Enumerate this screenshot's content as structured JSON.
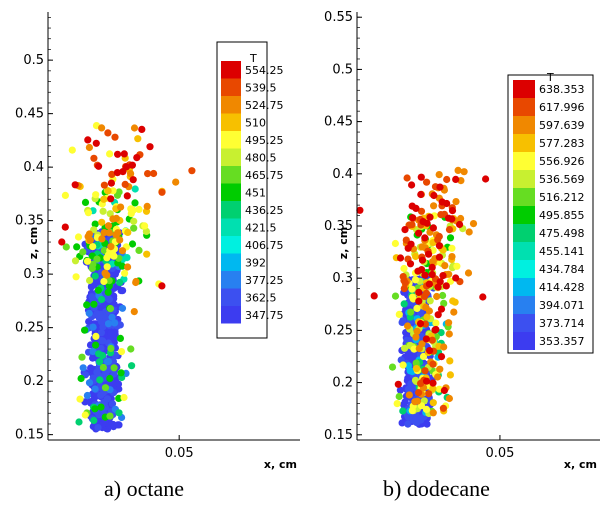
{
  "chart_data": [
    {
      "type": "scatter",
      "caption": "a) octane",
      "xlabel": "x, cm",
      "ylabel": "z, cm",
      "xlim": [
        0.012,
        0.085
      ],
      "ylim": [
        0.145,
        0.545
      ],
      "x_ticks": [
        {
          "value": 0.05,
          "label": "0.05"
        }
      ],
      "y_ticks": [
        {
          "value": 0.15,
          "label": "0.15"
        },
        {
          "value": 0.2,
          "label": "0.2"
        },
        {
          "value": 0.25,
          "label": "0.25"
        },
        {
          "value": 0.3,
          "label": "0.3"
        },
        {
          "value": 0.35,
          "label": "0.35"
        },
        {
          "value": 0.4,
          "label": "0.4"
        },
        {
          "value": 0.45,
          "label": "0.45"
        },
        {
          "value": 0.5,
          "label": "0.5"
        }
      ],
      "grid": false,
      "legend_title": "T",
      "legend_placement": "right",
      "legend_levels": [
        "554.25",
        "539.5",
        "524.75",
        "510",
        "495.25",
        "480.5",
        "465.75",
        "451",
        "436.25",
        "421.5",
        "406.75",
        "392",
        "377.25",
        "362.5",
        "347.75"
      ],
      "legend_colors": [
        "#dc0000",
        "#e84800",
        "#f08800",
        "#f7c000",
        "#ffff33",
        "#c8f030",
        "#66dd22",
        "#00cc00",
        "#00d070",
        "#00e0b0",
        "#00f0e0",
        "#00b8f0",
        "#2880f0",
        "#3c50f0",
        "#3c3cf0"
      ],
      "clusters": [
        {
          "x_center": 0.028,
          "x_spread": 0.0035,
          "z_min": 0.155,
          "z_max": 0.34,
          "count": 700,
          "levels": [
            14,
            13
          ],
          "weights": [
            0.85,
            0.15
          ]
        },
        {
          "x_center": 0.028,
          "x_spread": 0.006,
          "z_min": 0.16,
          "z_max": 0.34,
          "count": 90,
          "levels": [
            12,
            8,
            7,
            6,
            4
          ],
          "weights": [
            0.35,
            0.2,
            0.2,
            0.15,
            0.1
          ]
        },
        {
          "x_center": 0.031,
          "x_spread": 0.009,
          "z_min": 0.29,
          "z_max": 0.38,
          "count": 120,
          "levels": [
            9,
            7,
            6,
            5,
            4,
            3,
            2
          ],
          "weights": [
            0.1,
            0.2,
            0.15,
            0.15,
            0.2,
            0.1,
            0.1
          ]
        },
        {
          "x_center": 0.034,
          "x_spread": 0.012,
          "z_min": 0.37,
          "z_max": 0.44,
          "count": 48,
          "levels": [
            4,
            3,
            2,
            1,
            0
          ],
          "weights": [
            0.15,
            0.15,
            0.15,
            0.2,
            0.35
          ]
        }
      ],
      "isolated_points": [
        {
          "x": 0.045,
          "z": 0.289,
          "level": 0
        },
        {
          "x": 0.049,
          "z": 0.386,
          "level": 2
        },
        {
          "x": 0.016,
          "z": 0.33,
          "level": 0
        },
        {
          "x": 0.017,
          "z": 0.344,
          "level": 0
        },
        {
          "x": 0.037,
          "z": 0.265,
          "level": 2
        },
        {
          "x": 0.036,
          "z": 0.23,
          "level": 6
        }
      ]
    },
    {
      "type": "scatter",
      "caption": "b) dodecane",
      "xlabel": "x, cm",
      "ylabel": "z, cm",
      "xlim": [
        0.0,
        0.085
      ],
      "ylim": [
        0.145,
        0.555
      ],
      "x_ticks": [
        {
          "value": 0.05,
          "label": "0.05"
        }
      ],
      "y_ticks": [
        {
          "value": 0.15,
          "label": "0.15"
        },
        {
          "value": 0.2,
          "label": "0.2"
        },
        {
          "value": 0.25,
          "label": "0.25"
        },
        {
          "value": 0.3,
          "label": "0.3"
        },
        {
          "value": 0.35,
          "label": "0.35"
        },
        {
          "value": 0.4,
          "label": "0.4"
        },
        {
          "value": 0.45,
          "label": "0.45"
        },
        {
          "value": 0.5,
          "label": "0.5"
        },
        {
          "value": 0.55,
          "label": "0.55"
        }
      ],
      "grid": false,
      "legend_title": "T",
      "legend_placement": "right",
      "legend_levels": [
        "638.353",
        "617.996",
        "597.639",
        "577.283",
        "556.926",
        "536.569",
        "516.212",
        "495.855",
        "475.498",
        "455.141",
        "434.784",
        "414.428",
        "394.071",
        "373.714",
        "353.357"
      ],
      "legend_colors": [
        "#dc0000",
        "#e84800",
        "#f08800",
        "#f7c000",
        "#ffff33",
        "#c8f030",
        "#66dd22",
        "#00cc00",
        "#00d070",
        "#00e0b0",
        "#00f0e0",
        "#00b8f0",
        "#2880f0",
        "#3c50f0",
        "#3c3cf0"
      ],
      "clusters": [
        {
          "x_center": 0.021,
          "x_spread": 0.0035,
          "z_min": 0.16,
          "z_max": 0.3,
          "count": 560,
          "levels": [
            14,
            13
          ],
          "weights": [
            0.85,
            0.15
          ]
        },
        {
          "x_center": 0.023,
          "x_spread": 0.007,
          "z_min": 0.17,
          "z_max": 0.3,
          "count": 110,
          "levels": [
            11,
            8,
            6,
            5,
            4
          ],
          "weights": [
            0.2,
            0.15,
            0.2,
            0.2,
            0.25
          ]
        },
        {
          "x_center": 0.026,
          "x_spread": 0.008,
          "z_min": 0.17,
          "z_max": 0.3,
          "count": 70,
          "levels": [
            3,
            2,
            1,
            0
          ],
          "weights": [
            0.25,
            0.3,
            0.2,
            0.25
          ]
        },
        {
          "x_center": 0.026,
          "x_spread": 0.009,
          "z_min": 0.29,
          "z_max": 0.36,
          "count": 120,
          "levels": [
            7,
            5,
            4,
            3,
            2,
            1,
            0
          ],
          "weights": [
            0.15,
            0.15,
            0.15,
            0.15,
            0.15,
            0.1,
            0.15
          ]
        },
        {
          "x_center": 0.028,
          "x_spread": 0.01,
          "z_min": 0.35,
          "z_max": 0.405,
          "count": 40,
          "levels": [
            2,
            1,
            0
          ],
          "weights": [
            0.3,
            0.3,
            0.4
          ]
        }
      ],
      "isolated_points": [
        {
          "x": 0.045,
          "z": 0.395,
          "level": 0
        },
        {
          "x": 0.001,
          "z": 0.365,
          "level": 0
        },
        {
          "x": 0.006,
          "z": 0.283,
          "level": 0
        },
        {
          "x": 0.044,
          "z": 0.282,
          "level": 0
        },
        {
          "x": 0.039,
          "z": 0.305,
          "level": 2
        }
      ]
    }
  ]
}
